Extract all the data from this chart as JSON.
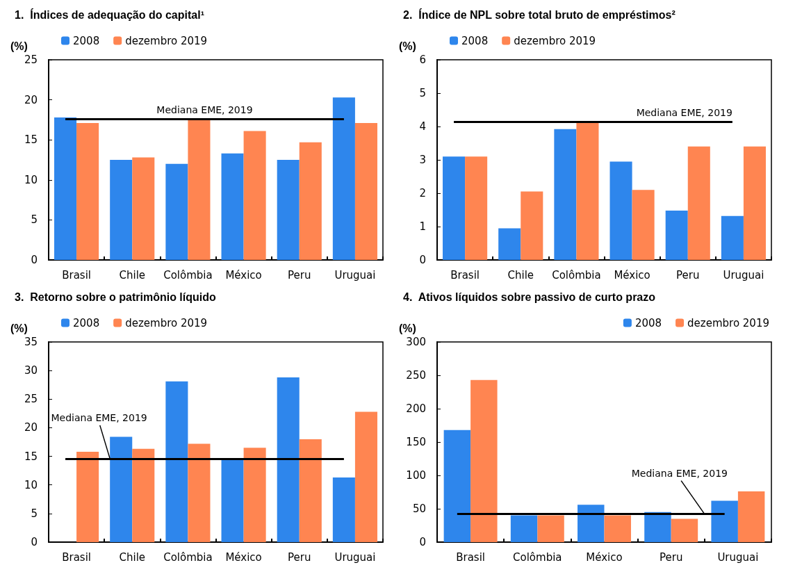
{
  "chart_data": [
    {
      "type": "bar",
      "title": "1.  Índices de adequação do capital¹",
      "ylabel": "(%)",
      "categories": [
        "Brasil",
        "Chile",
        "Colômbia",
        "México",
        "Peru",
        "Uruguai"
      ],
      "series": [
        {
          "name": "2008",
          "color": "#2e86ec",
          "values": [
            17.8,
            12.5,
            12.0,
            13.3,
            12.5,
            20.3
          ]
        },
        {
          "name": "dezembro 2019",
          "color": "#ff8551",
          "values": [
            17.1,
            12.8,
            17.6,
            16.1,
            14.7,
            17.1
          ]
        }
      ],
      "ylim": [
        0,
        25
      ],
      "yticks": [
        0,
        5,
        10,
        15,
        20,
        25
      ],
      "grid": false,
      "legend": "top left",
      "ref_lines": [
        {
          "axis": "y",
          "value": 17.6,
          "label": "Mediana EME, 2019",
          "color": "#000000"
        }
      ]
    },
    {
      "type": "bar",
      "title": "2.  Índice de NPL sobre total bruto de empréstimos²",
      "ylabel": "(%)",
      "categories": [
        "Brasil",
        "Chile",
        "Colômbia",
        "México",
        "Peru",
        "Uruguai"
      ],
      "series": [
        {
          "name": "2008",
          "color": "#2e86ec",
          "values": [
            3.1,
            0.95,
            3.92,
            2.95,
            1.48,
            1.32
          ]
        },
        {
          "name": "dezembro 2019",
          "color": "#ff8551",
          "values": [
            3.1,
            2.05,
            4.15,
            2.1,
            3.4,
            3.4
          ]
        }
      ],
      "ylim": [
        0,
        6
      ],
      "yticks": [
        0,
        1,
        2,
        3,
        4,
        5,
        6
      ],
      "grid": false,
      "legend": "top left",
      "ref_lines": [
        {
          "axis": "y",
          "value": 4.15,
          "label": "Mediana EME, 2019",
          "color": "#000000"
        }
      ]
    },
    {
      "type": "bar",
      "title": "3.  Retorno sobre o patrimônio líquido",
      "ylabel": "(%)",
      "categories": [
        "Brasil",
        "Chile",
        "Colômbia",
        "México",
        "Peru",
        "Uruguai"
      ],
      "series": [
        {
          "name": "2008",
          "color": "#2e86ec",
          "values": [
            null,
            18.4,
            28.1,
            14.7,
            28.8,
            11.3
          ]
        },
        {
          "name": "dezembro 2019",
          "color": "#ff8551",
          "values": [
            15.8,
            16.3,
            17.2,
            16.5,
            18.0,
            22.8
          ]
        }
      ],
      "ylim": [
        0,
        35
      ],
      "yticks": [
        0,
        5,
        10,
        15,
        20,
        25,
        30,
        35
      ],
      "grid": false,
      "legend": "top left",
      "ref_lines": [
        {
          "axis": "y",
          "value": 14.6,
          "label": "Mediana EME, 2019",
          "color": "#000000"
        }
      ]
    },
    {
      "type": "bar",
      "title": "4.  Ativos líquidos sobre passivo de curto prazo",
      "ylabel": "(%)",
      "categories": [
        "Brasil",
        "Colômbia",
        "México",
        "Peru",
        "Uruguai"
      ],
      "series": [
        {
          "name": "2008",
          "color": "#2e86ec",
          "values": [
            168,
            40,
            56,
            45,
            62
          ]
        },
        {
          "name": "dezembro 2019",
          "color": "#ff8551",
          "values": [
            243,
            40,
            40,
            35,
            76
          ]
        }
      ],
      "ylim": [
        0,
        300
      ],
      "yticks": [
        0,
        50,
        100,
        150,
        200,
        250,
        300
      ],
      "grid": false,
      "legend": "top right",
      "ref_lines": [
        {
          "axis": "y",
          "value": 42,
          "label": "Mediana EME, 2019",
          "color": "#000000"
        }
      ]
    }
  ]
}
